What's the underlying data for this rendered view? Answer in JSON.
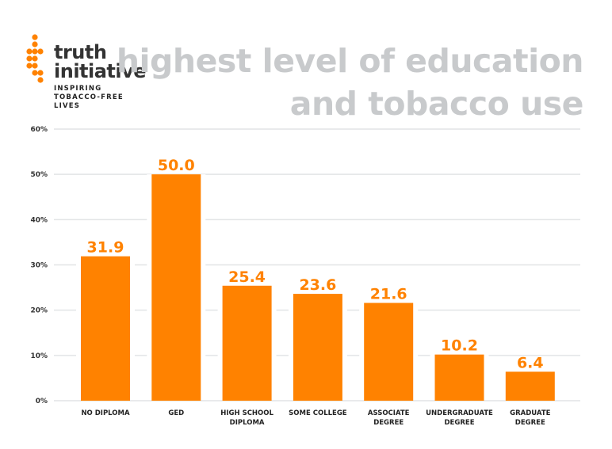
{
  "brand": {
    "name_line1": "truth",
    "name_line2": "initiative",
    "tagline": [
      "INSPIRING",
      "TOBACCO-FREE",
      "LIVES"
    ],
    "accent": "#ff8200"
  },
  "title_lines": [
    "highest level of education",
    "and tobacco use"
  ],
  "chart_data": {
    "type": "bar",
    "title": "highest level of education and tobacco use",
    "categories": [
      [
        "NO DIPLOMA"
      ],
      [
        "GED"
      ],
      [
        "HIGH SCHOOL",
        "DIPLOMA"
      ],
      [
        "SOME COLLEGE"
      ],
      [
        "ASSOCIATE",
        "DEGREE"
      ],
      [
        "UNDERGRADUATE",
        "DEGREE"
      ],
      [
        "GRADUATE",
        "DEGREE"
      ]
    ],
    "values": [
      31.9,
      50.0,
      25.4,
      23.6,
      21.6,
      10.2,
      6.4
    ],
    "data_labels": [
      "31.9",
      "50.0",
      "25.4",
      "23.6",
      "21.6",
      "10.2",
      "6.4"
    ],
    "ylim": [
      0,
      60
    ],
    "yticks": [
      "0%",
      "10%",
      "20%",
      "30%",
      "40%",
      "50%",
      "60%"
    ],
    "grid": true,
    "bar_color": "#ff8200"
  }
}
